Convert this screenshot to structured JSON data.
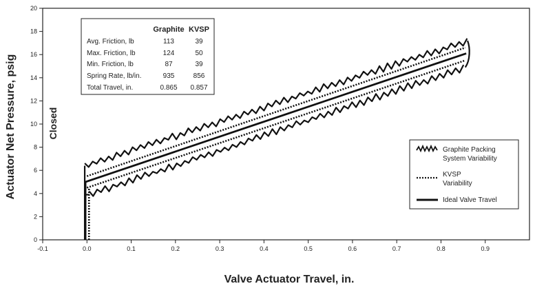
{
  "chart_data": {
    "type": "line",
    "xlabel": "Valve Actuator Travel, in.",
    "ylabel": "Actuator Net Pressure, psig",
    "xlim": [
      -0.1,
      1.0
    ],
    "ylim": [
      0,
      20
    ],
    "x_ticks": [
      "-0.1",
      "0.0",
      "0.1",
      "0.2",
      "0.3",
      "0.4",
      "0.5",
      "0.6",
      "0.7",
      "0.8",
      "0.9"
    ],
    "y_ticks": [
      "0",
      "2",
      "4",
      "6",
      "8",
      "10",
      "12",
      "14",
      "16",
      "18",
      "20"
    ],
    "annotation": "Closed",
    "grid": false,
    "legend_position": "bottom-right",
    "series": [
      {
        "name": "Graphite Packing System Variability",
        "style": "jagged",
        "upper": {
          "x": [
            -0.005,
            0.86
          ],
          "y": [
            6.4,
            17.2
          ]
        },
        "lower": {
          "x": [
            0.005,
            0.855
          ],
          "y": [
            3.9,
            14.9
          ]
        },
        "vertical_x": -0.005,
        "turnaround_x": 0.86
      },
      {
        "name": "KVSP Variability",
        "style": "dotted",
        "upper": {
          "x": [
            0.0,
            0.855
          ],
          "y": [
            5.5,
            16.6
          ]
        },
        "lower": {
          "x": [
            0.0,
            0.855
          ],
          "y": [
            4.5,
            15.5
          ]
        },
        "vertical_x": 0.0
      },
      {
        "name": "Ideal Valve Travel",
        "style": "solid",
        "x": [
          -0.005,
          0.857
        ],
        "y": [
          5.0,
          16.1
        ],
        "vertical_x": -0.005
      }
    ],
    "table": {
      "columns": [
        "",
        "Graphite",
        "KVSP"
      ],
      "rows": [
        [
          "Avg. Friction, lb",
          "113",
          "39"
        ],
        [
          "Max. Friction, lb",
          "124",
          "50"
        ],
        [
          "Min. Friction, lb",
          "87",
          "39"
        ],
        [
          "Spring Rate, lb/in.",
          "935",
          "856"
        ],
        [
          "Total Travel, in.",
          "0.865",
          "0.857"
        ]
      ]
    },
    "legend": [
      {
        "label_lines": [
          "Graphite Packing",
          "System Variability"
        ],
        "style": "jagged"
      },
      {
        "label_lines": [
          "KVSP",
          "Variability"
        ],
        "style": "dotted"
      },
      {
        "label_lines": [
          "Ideal Valve Travel"
        ],
        "style": "solid"
      }
    ]
  }
}
